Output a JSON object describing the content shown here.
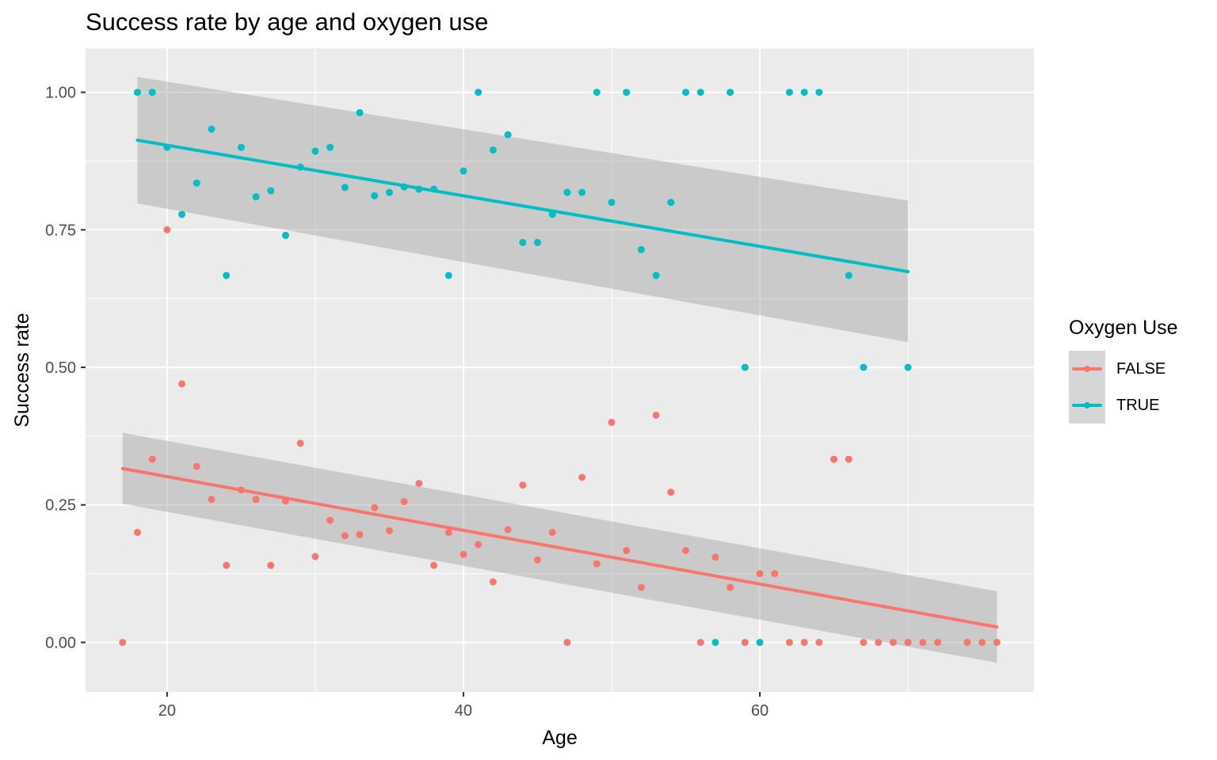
{
  "title": "Success rate by age and oxygen use",
  "colors": {
    "false": "#F8766D",
    "true": "#00BFC4",
    "panel": "#EBEBEB",
    "ribbon": "#999999"
  },
  "chart_data": {
    "type": "scatter",
    "title": "Success rate by age and oxygen use",
    "xlabel": "Age",
    "ylabel": "Success rate",
    "xlim": [
      14.5,
      78.5
    ],
    "ylim": [
      -0.09,
      1.08
    ],
    "x_ticks": [
      {
        "value": 20,
        "label": "20"
      },
      {
        "value": 40,
        "label": "40"
      },
      {
        "value": 60,
        "label": "60"
      }
    ],
    "y_ticks": [
      {
        "value": 0,
        "label": "0.00"
      },
      {
        "value": 0.25,
        "label": "0.25"
      },
      {
        "value": 0.5,
        "label": "0.50"
      },
      {
        "value": 0.75,
        "label": "0.75"
      },
      {
        "value": 1,
        "label": "1.00"
      }
    ],
    "grid": true,
    "legend": {
      "title": "Oxygen Use",
      "position": "right"
    },
    "series": [
      {
        "name": "FALSE",
        "color": "#F8766D",
        "points": [
          [
            17,
            0
          ],
          [
            18,
            0.2
          ],
          [
            19,
            0.333
          ],
          [
            20,
            0.75
          ],
          [
            21,
            0.47
          ],
          [
            22,
            0.32
          ],
          [
            23,
            0.26
          ],
          [
            24,
            0.14
          ],
          [
            25,
            0.277
          ],
          [
            26,
            0.26
          ],
          [
            27,
            0.14
          ],
          [
            28,
            0.257
          ],
          [
            29,
            0.362
          ],
          [
            30,
            0.156
          ],
          [
            31,
            0.222
          ],
          [
            32,
            0.194
          ],
          [
            33,
            0.196
          ],
          [
            34,
            0.245
          ],
          [
            35,
            0.203
          ],
          [
            36,
            0.256
          ],
          [
            37,
            0.289
          ],
          [
            38,
            0.14
          ],
          [
            39,
            0.2
          ],
          [
            40,
            0.16
          ],
          [
            41,
            0.178
          ],
          [
            42,
            0.11
          ],
          [
            43,
            0.205
          ],
          [
            44,
            0.286
          ],
          [
            45,
            0.15
          ],
          [
            46,
            0.2
          ],
          [
            47,
            0
          ],
          [
            48,
            0.3
          ],
          [
            49,
            0.143
          ],
          [
            50,
            0.4
          ],
          [
            51,
            0.167
          ],
          [
            52,
            0.1
          ],
          [
            53,
            0.413
          ],
          [
            54,
            0.273
          ],
          [
            55,
            0.167
          ],
          [
            56,
            0
          ],
          [
            57,
            0.155
          ],
          [
            58,
            0.1
          ],
          [
            59,
            0
          ],
          [
            60,
            0.125
          ],
          [
            61,
            0.125
          ],
          [
            62,
            0
          ],
          [
            63,
            0
          ],
          [
            64,
            0
          ],
          [
            65,
            0.333
          ],
          [
            66,
            0.333
          ],
          [
            67,
            0
          ],
          [
            68,
            0
          ],
          [
            69,
            0
          ],
          [
            70,
            0
          ],
          [
            71,
            0
          ],
          [
            72,
            0
          ],
          [
            74,
            0
          ],
          [
            75,
            0
          ],
          [
            76,
            0
          ]
        ],
        "fit": {
          "x": [
            17,
            76
          ],
          "y": [
            0.316,
            0.028
          ],
          "ci_low": [
            0.252,
            -0.037
          ],
          "ci_high": [
            0.381,
            0.093
          ]
        }
      },
      {
        "name": "TRUE",
        "color": "#00BFC4",
        "points": [
          [
            18,
            1
          ],
          [
            19,
            1
          ],
          [
            20,
            0.9
          ],
          [
            21,
            0.778
          ],
          [
            22,
            0.835
          ],
          [
            23,
            0.933
          ],
          [
            24,
            0.667
          ],
          [
            25,
            0.9
          ],
          [
            26,
            0.81
          ],
          [
            27,
            0.821
          ],
          [
            28,
            0.74
          ],
          [
            29,
            0.864
          ],
          [
            30,
            0.893
          ],
          [
            31,
            0.9
          ],
          [
            32,
            0.827
          ],
          [
            33,
            0.963
          ],
          [
            34,
            0.812
          ],
          [
            35,
            0.818
          ],
          [
            36,
            0.828
          ],
          [
            37,
            0.824
          ],
          [
            38,
            0.824
          ],
          [
            39,
            0.667
          ],
          [
            40,
            0.857
          ],
          [
            41,
            1
          ],
          [
            42,
            0.895
          ],
          [
            43,
            0.923
          ],
          [
            44,
            0.727
          ],
          [
            45,
            0.727
          ],
          [
            46,
            0.778
          ],
          [
            47,
            0.818
          ],
          [
            48,
            0.818
          ],
          [
            49,
            1
          ],
          [
            50,
            0.8
          ],
          [
            51,
            1
          ],
          [
            52,
            0.714
          ],
          [
            53,
            0.667
          ],
          [
            54,
            0.8
          ],
          [
            55,
            1
          ],
          [
            56,
            1
          ],
          [
            57,
            0
          ],
          [
            58,
            1
          ],
          [
            59,
            0.5
          ],
          [
            60,
            0
          ],
          [
            62,
            1
          ],
          [
            63,
            1
          ],
          [
            64,
            1
          ],
          [
            66,
            0.667
          ],
          [
            67,
            0.5
          ],
          [
            70,
            0.5
          ]
        ],
        "fit": {
          "x": [
            18,
            70
          ],
          "y": [
            0.913,
            0.674
          ],
          "ci_low": [
            0.798,
            0.546
          ],
          "ci_high": [
            1.028,
            0.803
          ]
        }
      }
    ]
  }
}
